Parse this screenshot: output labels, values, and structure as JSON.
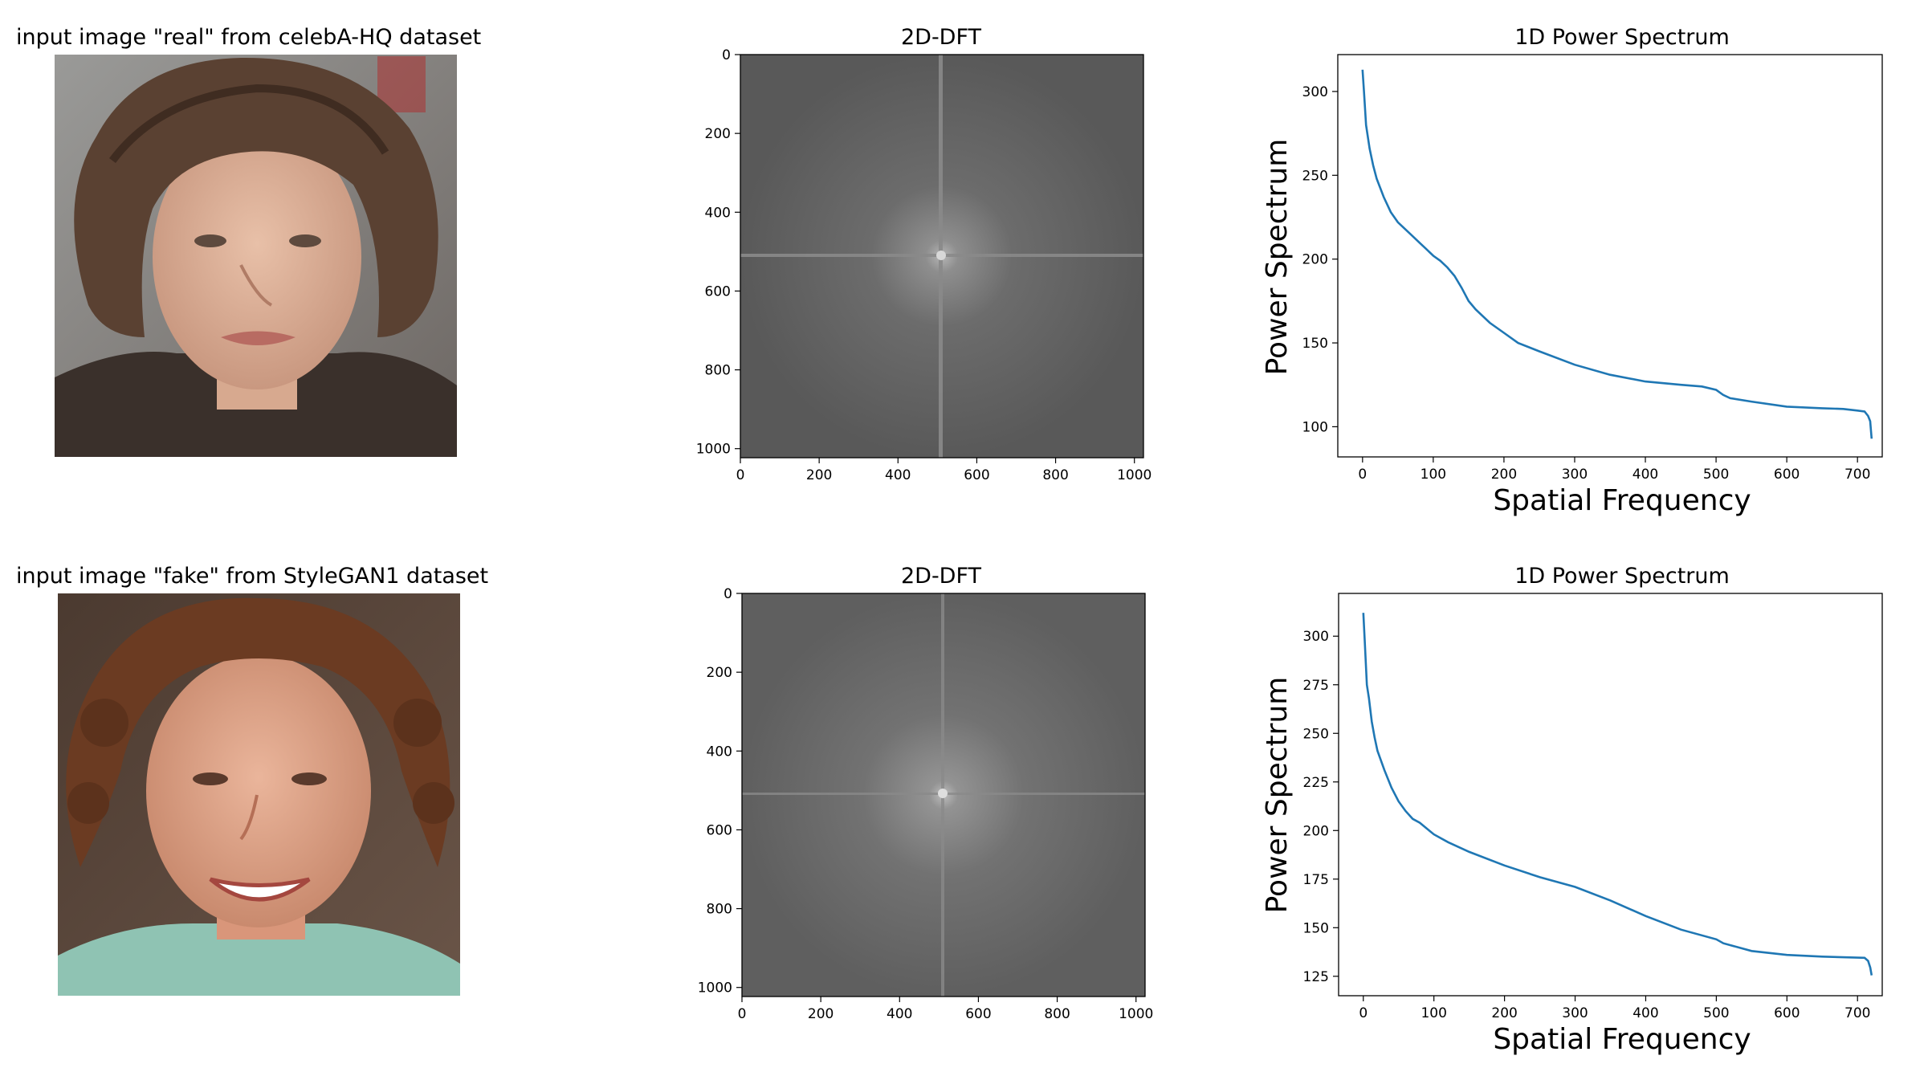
{
  "figure": {
    "rows": [
      {
        "photo": {
          "title": "input image \"real\" from celebA-HQ dataset",
          "subject": "real face photo (celebA-HQ)"
        },
        "dft": {
          "title": "2D-DFT"
        },
        "spectrum": {
          "title": "1D Power Spectrum"
        }
      },
      {
        "photo": {
          "title": "input image \"fake\" from StyleGAN1 dataset",
          "subject": "generated face image (StyleGAN1)"
        },
        "dft": {
          "title": "2D-DFT"
        },
        "spectrum": {
          "title": "1D Power Spectrum"
        }
      }
    ]
  },
  "chart_data": [
    {
      "type": "heatmap",
      "title": "2D-DFT",
      "xlim": [
        0,
        1023
      ],
      "ylim": [
        1023,
        0
      ],
      "xticks": [
        0,
        200,
        400,
        600,
        800,
        1000
      ],
      "yticks": [
        0,
        200,
        400,
        600,
        800,
        1000
      ],
      "colormap": "gray",
      "center": [
        512,
        512
      ]
    },
    {
      "type": "line",
      "title": "1D Power Spectrum",
      "xlabel": "Spatial Frequency",
      "ylabel": "Power Spectrum",
      "xlim": [
        -35,
        735
      ],
      "ylim": [
        82,
        322
      ],
      "xticks": [
        0,
        100,
        200,
        300,
        400,
        500,
        600,
        700
      ],
      "yticks": [
        100,
        150,
        200,
        250,
        300
      ],
      "line_color": "#1f77b4",
      "series": [
        {
          "x": [
            0,
            2,
            5,
            10,
            15,
            20,
            30,
            40,
            50,
            60,
            70,
            80,
            90,
            100,
            110,
            120,
            130,
            140,
            150,
            160,
            180,
            200,
            220,
            250,
            300,
            350,
            400,
            450,
            480,
            500,
            510,
            520,
            550,
            600,
            650,
            680,
            700,
            710,
            715,
            718,
            720
          ],
          "values": [
            313,
            300,
            280,
            266,
            256,
            248,
            237,
            228,
            222,
            218,
            214,
            210,
            206,
            202,
            199,
            195,
            190,
            183,
            175,
            170,
            162,
            156,
            150,
            145,
            137,
            131,
            127,
            125,
            124,
            122,
            119,
            117,
            115,
            112,
            111,
            110,
            109,
            109,
            107,
            104,
            93
          ]
        }
      ]
    },
    {
      "type": "heatmap",
      "title": "2D-DFT",
      "xlim": [
        0,
        1023
      ],
      "ylim": [
        1023,
        0
      ],
      "xticks": [
        0,
        200,
        400,
        600,
        800,
        1000
      ],
      "yticks": [
        0,
        200,
        400,
        600,
        800,
        1000
      ],
      "colormap": "gray",
      "center": [
        512,
        512
      ]
    },
    {
      "type": "line",
      "title": "1D Power Spectrum",
      "xlabel": "Spatial Frequency",
      "ylabel": "Power Spectrum",
      "xlim": [
        -35,
        735
      ],
      "ylim": [
        115,
        322
      ],
      "xticks": [
        0,
        100,
        200,
        300,
        400,
        500,
        600,
        700
      ],
      "yticks": [
        125,
        150,
        175,
        200,
        225,
        250,
        275,
        300
      ],
      "line_color": "#1f77b4",
      "series": [
        {
          "x": [
            0,
            2,
            5,
            8,
            12,
            16,
            20,
            30,
            40,
            50,
            60,
            70,
            80,
            90,
            100,
            120,
            150,
            200,
            250,
            300,
            350,
            400,
            450,
            500,
            510,
            520,
            550,
            600,
            650,
            700,
            710,
            715,
            718,
            720
          ],
          "values": [
            312,
            298,
            275,
            268,
            256,
            248,
            241,
            231,
            222,
            215,
            210,
            206,
            204,
            201,
            198,
            194,
            189,
            182,
            176,
            171,
            164,
            156,
            149,
            144,
            142,
            141,
            138,
            136,
            135,
            134,
            134,
            133,
            130,
            126
          ]
        }
      ]
    }
  ]
}
